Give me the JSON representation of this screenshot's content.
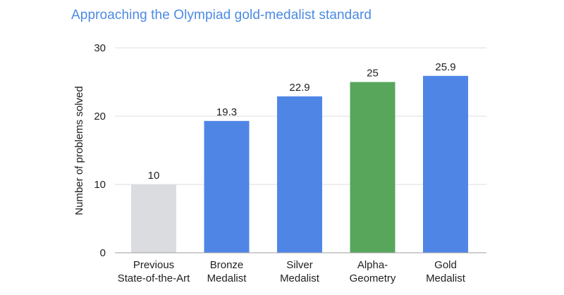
{
  "chart_data": {
    "type": "bar",
    "title": "Approaching the Olympiad gold-medalist standard",
    "ylabel": "Number of problems solved",
    "xlabel": "",
    "ylim": [
      0,
      30
    ],
    "yticks": [
      0,
      10,
      20,
      30
    ],
    "grid": true,
    "categories": [
      [
        "Previous",
        "State-of-the-Art"
      ],
      [
        "Bronze",
        "Medalist"
      ],
      [
        "Silver",
        "Medalist"
      ],
      [
        "Alpha-",
        "Geometry"
      ],
      [
        "Gold",
        "Medalist"
      ]
    ],
    "values": [
      10,
      19.3,
      22.9,
      25,
      25.9
    ],
    "value_labels": [
      "10",
      "19.3",
      "22.9",
      "25",
      "25.9"
    ],
    "bar_colors": [
      "#dadce0",
      "#4f86e6",
      "#4f86e6",
      "#58a65c",
      "#4f86e6"
    ]
  },
  "colors": {
    "title": "#4b8ae3",
    "grid": "#dcdcdc",
    "axis": "#9e9e9e",
    "text": "#202124"
  }
}
